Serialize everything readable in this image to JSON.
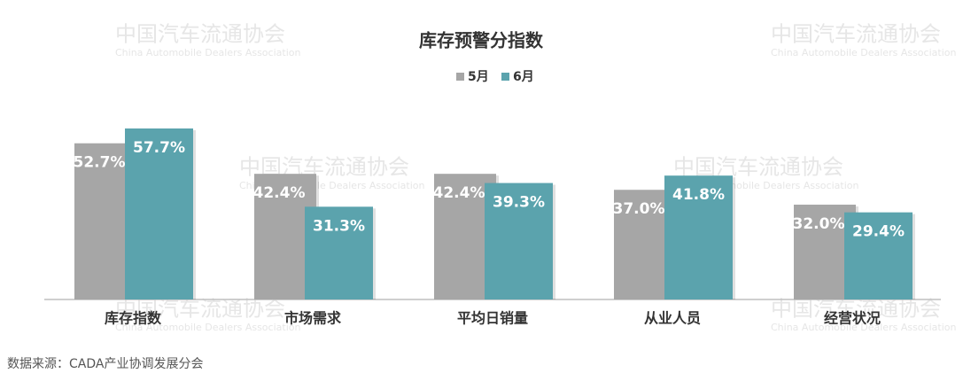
{
  "chart_data": {
    "type": "bar",
    "title": "库存预警分指数",
    "categories": [
      "库存指数",
      "市场需求",
      "平均日销量",
      "从业人员",
      "经营状况"
    ],
    "series": [
      {
        "name": "5月",
        "color": "#a6a6a6",
        "values": [
          52.7,
          42.4,
          42.4,
          37.0,
          32.0
        ],
        "value_labels": [
          "52.7%",
          "42.4%",
          "42.4%",
          "37.0%",
          "32.0%"
        ]
      },
      {
        "name": "6月",
        "color": "#5ba3ad",
        "values": [
          57.7,
          31.3,
          39.3,
          41.8,
          29.4
        ],
        "value_labels": [
          "57.7%",
          "31.3%",
          "39.3%",
          "41.8%",
          "29.4%"
        ]
      }
    ],
    "legend": "top",
    "watermark": "中国汽车流通协会",
    "watermark_en": "China Automobile Dealers Association",
    "source": "数据来源：CADA产业协调发展分会"
  }
}
